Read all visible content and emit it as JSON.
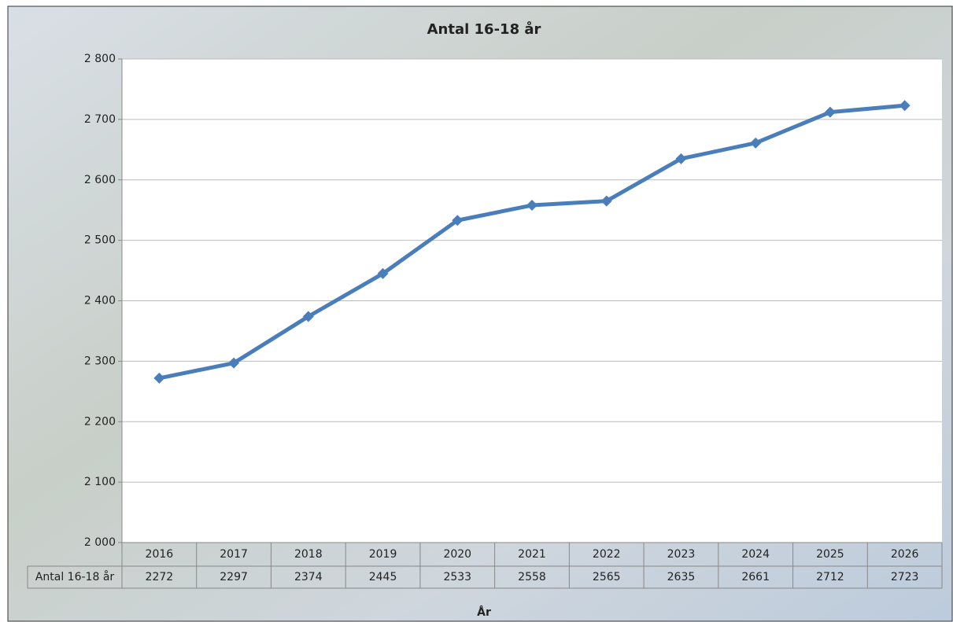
{
  "chart_data": {
    "type": "line",
    "title": "Antal 16-18 år",
    "x_label": "År",
    "categories": [
      "2016",
      "2017",
      "2018",
      "2019",
      "2020",
      "2021",
      "2022",
      "2023",
      "2024",
      "2025",
      "2026"
    ],
    "series": [
      {
        "name": "Antal 16-18 år",
        "color": "#4a7ebb",
        "values": [
          2272,
          2297,
          2374,
          2445,
          2533,
          2558,
          2565,
          2635,
          2661,
          2712,
          2723
        ]
      }
    ],
    "ylim": [
      2000,
      2800
    ],
    "yticks": [
      {
        "value": 2000,
        "label": "2 000"
      },
      {
        "value": 2100,
        "label": "2 100"
      },
      {
        "value": 2200,
        "label": "2 200"
      },
      {
        "value": 2300,
        "label": "2 300"
      },
      {
        "value": 2400,
        "label": "2 400"
      },
      {
        "value": 2500,
        "label": "2 500"
      },
      {
        "value": 2600,
        "label": "2 600"
      },
      {
        "value": 2700,
        "label": "2 700"
      },
      {
        "value": 2800,
        "label": "2 800"
      }
    ],
    "grid": true,
    "data_table": true
  }
}
